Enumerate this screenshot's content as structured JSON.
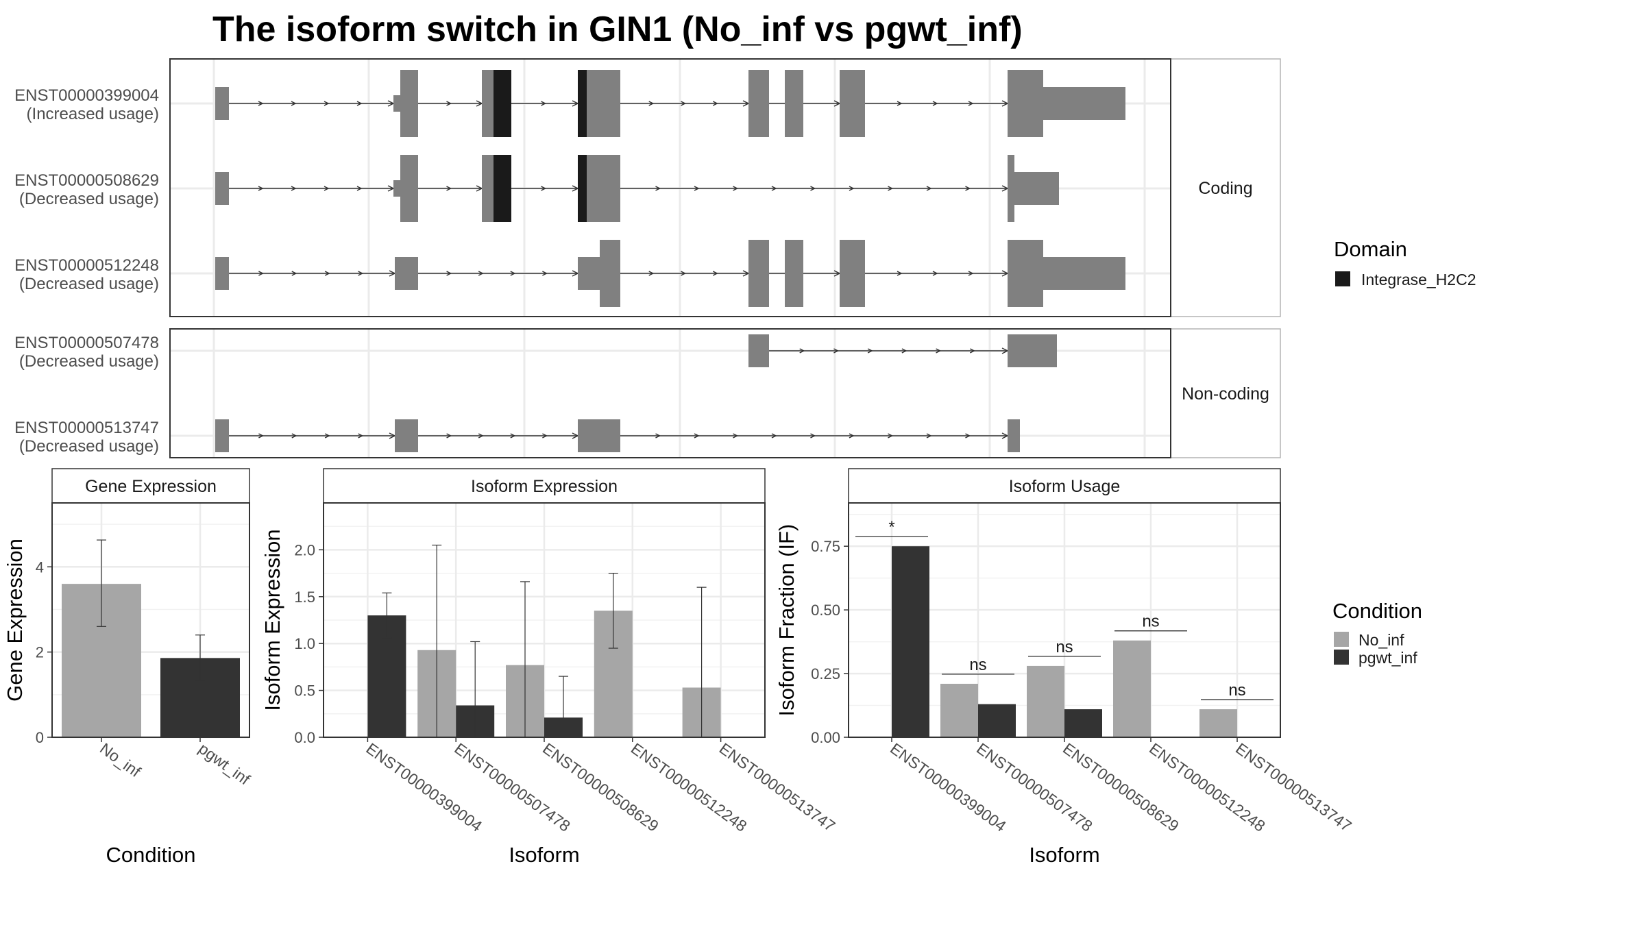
{
  "title": "The isoform switch in GIN1 (No_inf vs pgwt_inf)",
  "colors": {
    "exon": "#808080",
    "domain": "#1a1a1a",
    "no_inf": "#a6a6a6",
    "pgwt_inf": "#333333",
    "grid": "#ebebeb",
    "strip": "#ffffff",
    "panel_border": "#333333"
  },
  "structure": {
    "facets": [
      {
        "label": "Coding",
        "isoforms": [
          {
            "id": "ENST00000399004",
            "usage": "(Increased usage)"
          },
          {
            "id": "ENST00000508629",
            "usage": "(Decreased usage)"
          },
          {
            "id": "ENST00000512248",
            "usage": "(Decreased usage)"
          }
        ]
      },
      {
        "label": "Non-coding",
        "isoforms": [
          {
            "id": "ENST00000507478",
            "usage": "(Decreased usage)"
          },
          {
            "id": "ENST00000513747",
            "usage": "(Decreased usage)"
          }
        ]
      }
    ],
    "legend": {
      "title": "Domain",
      "items": [
        "Integrase_H2C2"
      ]
    }
  },
  "chart_data": [
    {
      "type": "bar",
      "panel_title": "Gene Expression",
      "xlabel": "Condition",
      "ylabel": "Gene Expression",
      "categories": [
        "No_inf",
        "pgwt_inf"
      ],
      "values": [
        3.6,
        1.86
      ],
      "error_low": [
        2.6,
        1.33
      ],
      "error_high": [
        4.63,
        2.4
      ],
      "yticks": [
        "0",
        "2",
        "4"
      ],
      "ylim": [
        0,
        5.5
      ]
    },
    {
      "type": "bar",
      "panel_title": "Isoform Expression",
      "xlabel": "Isoform",
      "ylabel": "Isoform Expression",
      "categories": [
        "ENST00000399004",
        "ENST00000507478",
        "ENST00000508629",
        "ENST00000512248",
        "ENST00000513747"
      ],
      "series": [
        {
          "name": "No_inf",
          "values": [
            0,
            0.93,
            0.77,
            1.35,
            0.53
          ],
          "error_low": [
            0,
            0,
            0,
            0.95,
            0
          ],
          "error_high": [
            0,
            2.05,
            1.66,
            1.75,
            1.6
          ]
        },
        {
          "name": "pgwt_inf",
          "values": [
            1.3,
            0.34,
            0.21,
            0,
            0
          ],
          "error_low": [
            1.06,
            0,
            0,
            0,
            0
          ],
          "error_high": [
            1.54,
            1.02,
            0.65,
            0,
            0
          ]
        }
      ],
      "yticks": [
        "0.0",
        "0.5",
        "1.0",
        "1.5",
        "2.0"
      ],
      "ylim": [
        0,
        2.5
      ]
    },
    {
      "type": "bar",
      "panel_title": "Isoform Usage",
      "xlabel": "Isoform",
      "ylabel": "Isoform Fraction (IF)",
      "categories": [
        "ENST00000399004",
        "ENST00000507478",
        "ENST00000508629",
        "ENST00000512248",
        "ENST00000513747"
      ],
      "series": [
        {
          "name": "No_inf",
          "values": [
            0,
            0.21,
            0.28,
            0.38,
            0.11
          ]
        },
        {
          "name": "pgwt_inf",
          "values": [
            0.75,
            0.13,
            0.11,
            0,
            0
          ]
        }
      ],
      "annotations": [
        "*",
        "ns",
        "ns",
        "ns",
        "ns"
      ],
      "yticks": [
        "0.00",
        "0.25",
        "0.50",
        "0.75"
      ],
      "ylim": [
        0,
        0.92
      ],
      "legend": {
        "title": "Condition",
        "items": [
          "No_inf",
          "pgwt_inf"
        ]
      }
    }
  ]
}
